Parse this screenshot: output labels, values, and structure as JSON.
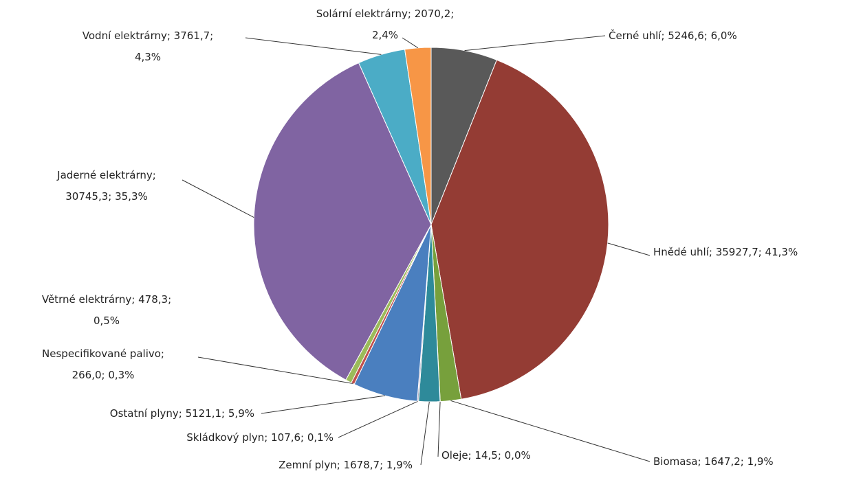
{
  "chart_data": {
    "type": "pie",
    "values": [
      5246.6,
      35927.7,
      1647.2,
      14.5,
      1678.7,
      107.6,
      5121.1,
      266.0,
      478.3,
      30745.3,
      3761.7,
      2070.2
    ],
    "value_labels": [
      [
        "Černé uhlí; 5246,6; 6,0%"
      ],
      [
        "Hnědé uhlí; 35927,7; 41,3%"
      ],
      [
        "Biomasa; 1647,2; 1,9%"
      ],
      [
        "Oleje; 14,5; 0,0%"
      ],
      [
        "Zemní plyn; 1678,7; 1,9%"
      ],
      [
        "Skládkový plyn; 107,6; 0,1%"
      ],
      [
        "Ostatní plyny; 5121,1; 5,9%"
      ],
      [
        "Nespecifikované palivo;",
        "266,0; 0,3%"
      ],
      [
        "Větrné elektrárny; 478,3;",
        "0,5%"
      ],
      [
        "Jaderné elektrárny;",
        "30745,3; 35,3%"
      ],
      [
        "Vodní elektrárny; 3761,7;",
        "4,3%"
      ],
      [
        "Solární elektrárny; 2070,2;",
        "2,4%"
      ]
    ],
    "colors": [
      "#595959",
      "#943c34",
      "#77a03c",
      "#4a6d8c",
      "#2e8a9a",
      "#b0a8c0",
      "#4a7fbf",
      "#c0504d",
      "#9bbb59",
      "#8064a2",
      "#4bacc6",
      "#f79646"
    ]
  }
}
